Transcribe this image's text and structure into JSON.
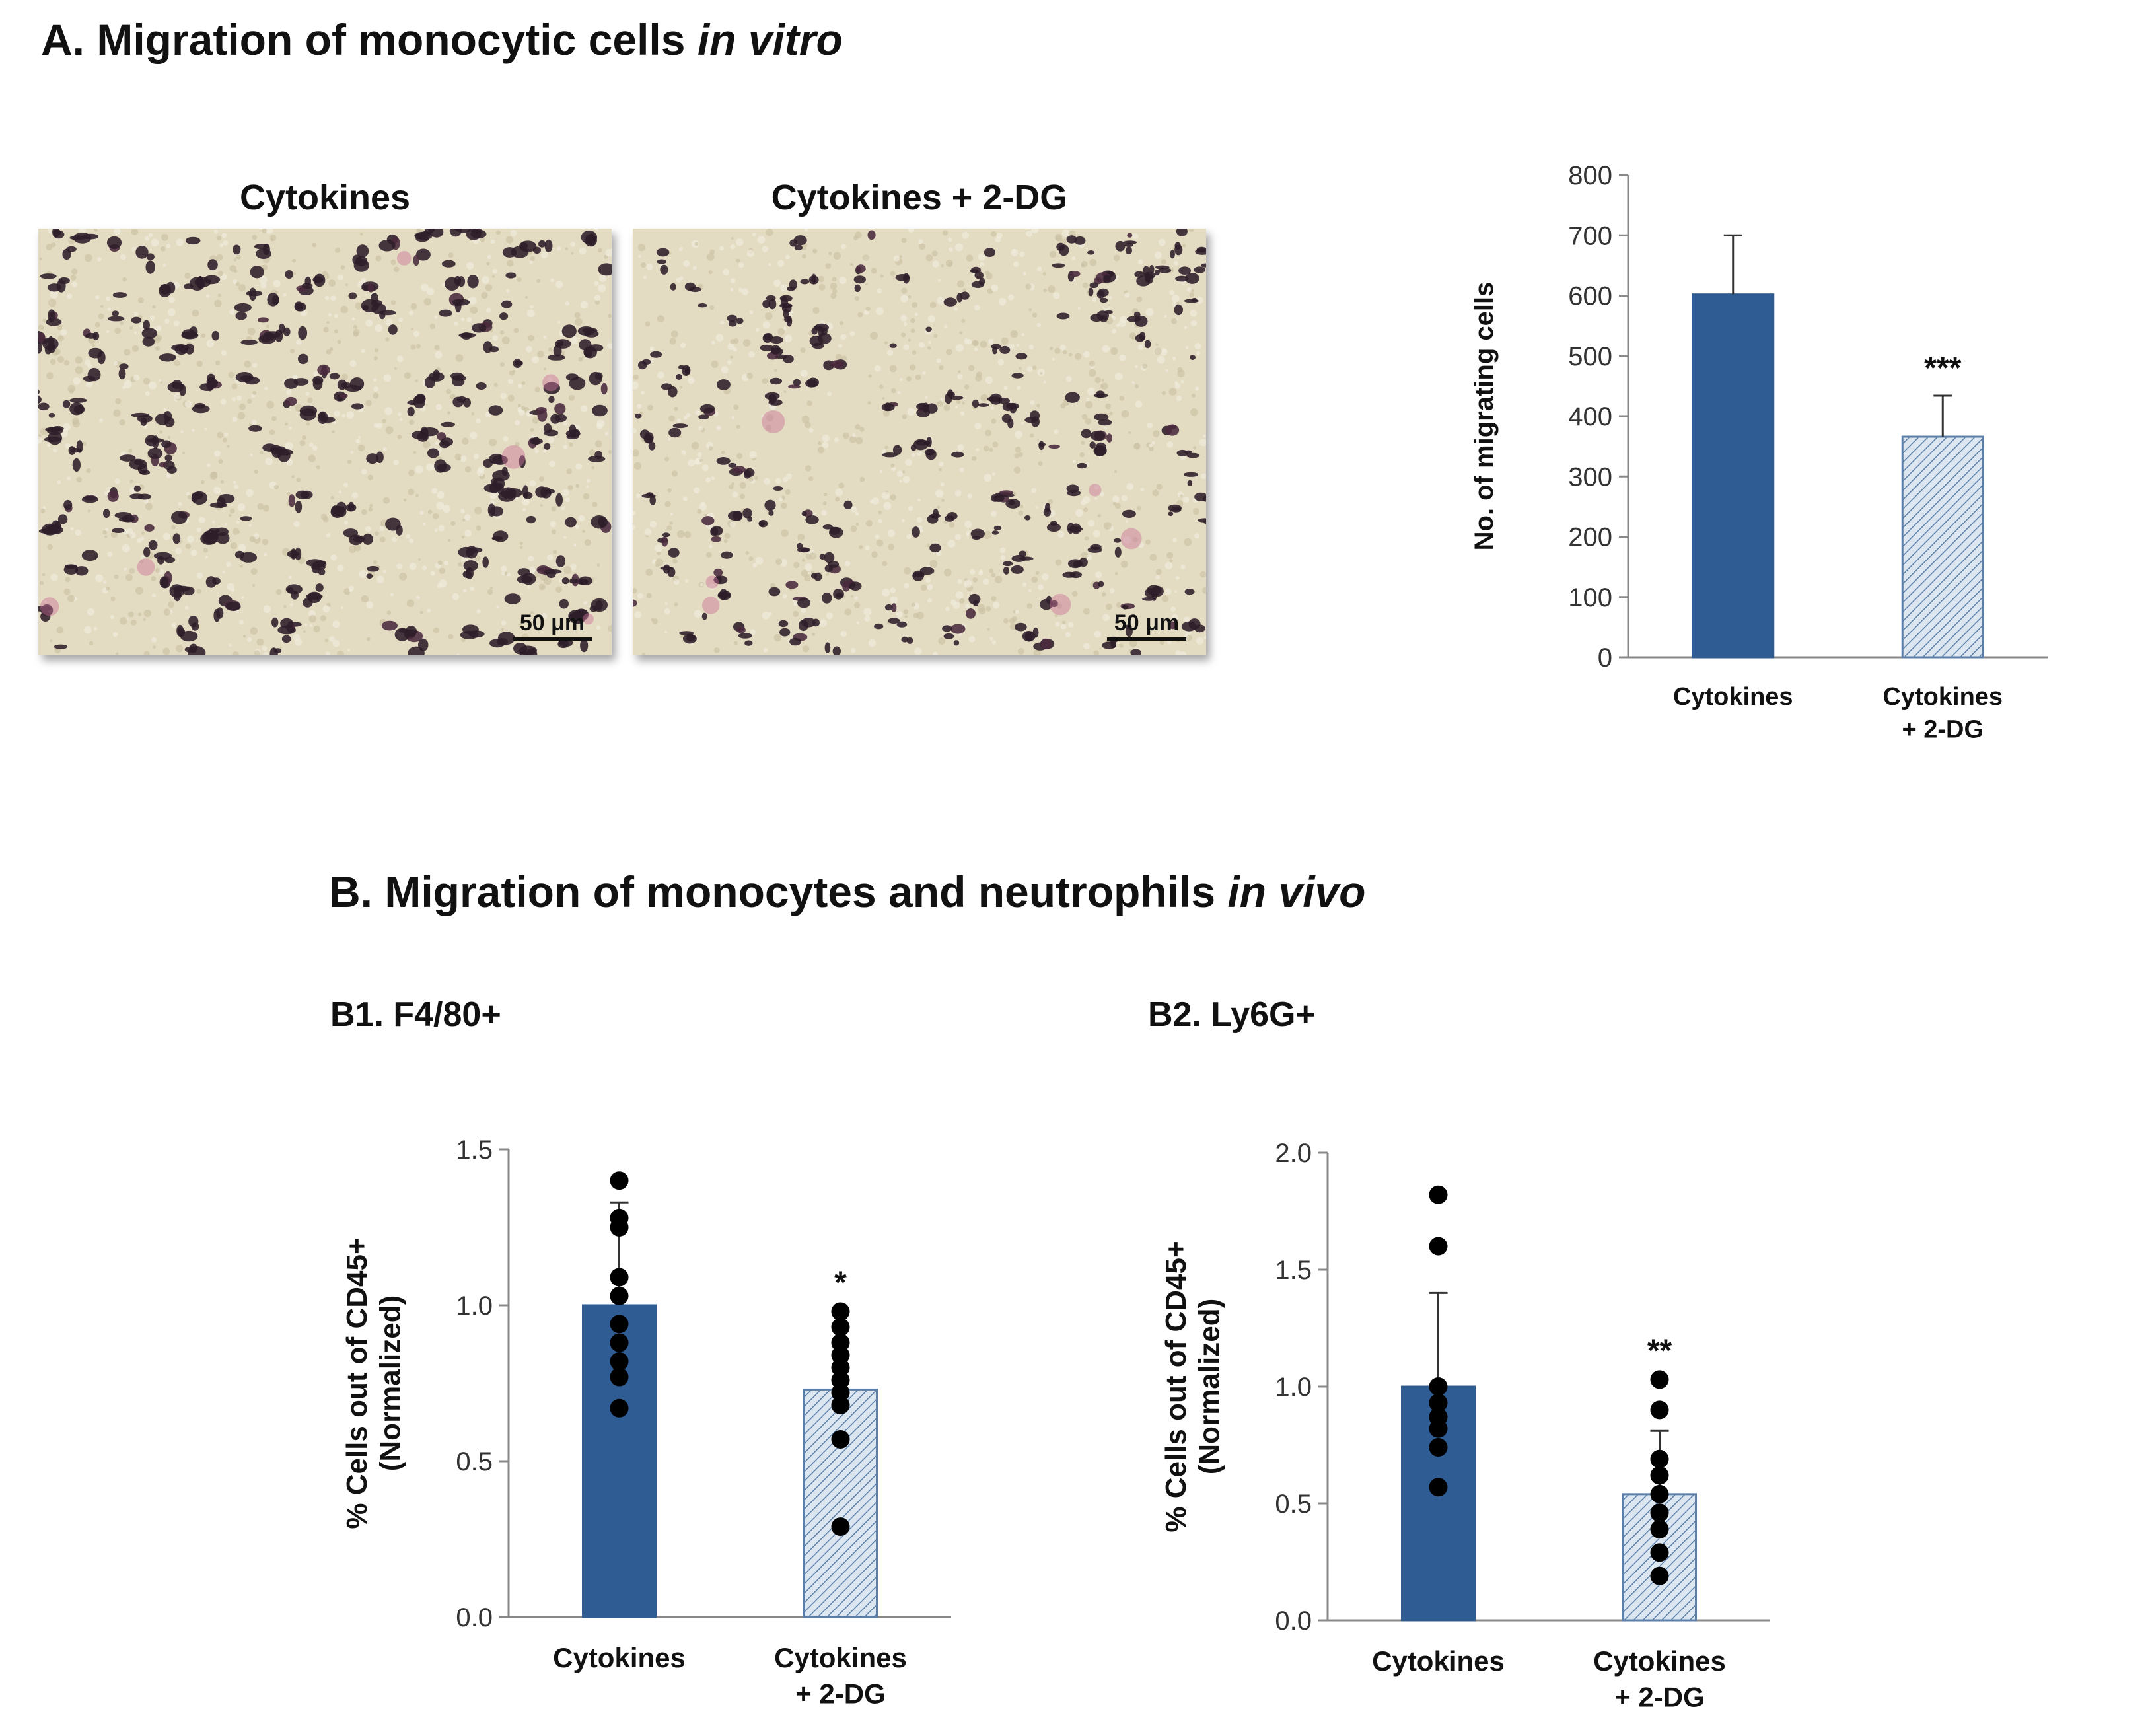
{
  "panel_a": {
    "title_main": "A. Migration of monocytic cells ",
    "title_em": "in vitro",
    "image_labels": [
      "Cytokines",
      "Cytokines + 2-DG"
    ],
    "scale_bar": "50 μm"
  },
  "panel_b": {
    "title_main": "B. Migration of monocytes and neutrophils ",
    "title_em": "in vivo",
    "b1_title": "B1. F4/80+",
    "b2_title": "B2. Ly6G+"
  },
  "colors": {
    "solid_bar": "#2F5C92",
    "hatch_bar_fill": "#DCE6F1",
    "hatch_line": "#5B7FA8",
    "axis": "#888888"
  },
  "chart_data": [
    {
      "id": "chart-a",
      "type": "bar",
      "categories": [
        [
          "Cytokines"
        ],
        [
          "Cytokines",
          "+ 2-DG"
        ]
      ],
      "values": [
        602,
        366
      ],
      "error": [
        98,
        68
      ],
      "significance": [
        "",
        "***"
      ],
      "ylabel": "No. of migrating cells",
      "ylim": [
        0,
        800
      ],
      "yticks": [
        0,
        100,
        200,
        300,
        400,
        500,
        600,
        700,
        800
      ],
      "tick_decimals": 0
    },
    {
      "id": "chart-b1",
      "type": "bar",
      "categories": [
        [
          "Cytokines"
        ],
        [
          "Cytokines",
          "+ 2-DG"
        ]
      ],
      "values": [
        1.0,
        0.73
      ],
      "error": [
        0.33,
        0.0
      ],
      "significance": [
        "",
        "*"
      ],
      "points": [
        [
          1.4,
          1.28,
          1.25,
          1.09,
          1.03,
          0.94,
          0.88,
          0.82,
          0.77,
          0.67
        ],
        [
          0.98,
          0.93,
          0.88,
          0.84,
          0.8,
          0.76,
          0.72,
          0.68,
          0.57,
          0.29
        ]
      ],
      "ylabel": [
        "% Cells out of CD45+",
        "(Normalized)"
      ],
      "ylim": [
        0,
        1.5
      ],
      "yticks": [
        0.0,
        0.5,
        1.0,
        1.5
      ],
      "tick_decimals": 1
    },
    {
      "id": "chart-b2",
      "type": "bar",
      "categories": [
        [
          "Cytokines"
        ],
        [
          "Cytokines",
          "+ 2-DG"
        ]
      ],
      "values": [
        1.0,
        0.54
      ],
      "error": [
        0.4,
        0.27
      ],
      "significance": [
        "",
        "**"
      ],
      "points": [
        [
          1.82,
          1.6,
          1.0,
          0.93,
          0.87,
          0.82,
          0.74,
          0.57
        ],
        [
          1.03,
          0.9,
          0.69,
          0.62,
          0.54,
          0.46,
          0.39,
          0.29,
          0.19
        ]
      ],
      "ylabel": [
        "% Cells out of CD45+",
        "(Normalized)"
      ],
      "ylim": [
        0,
        2.0
      ],
      "yticks": [
        0.0,
        0.5,
        1.0,
        1.5,
        2.0
      ],
      "tick_decimals": 1
    }
  ]
}
